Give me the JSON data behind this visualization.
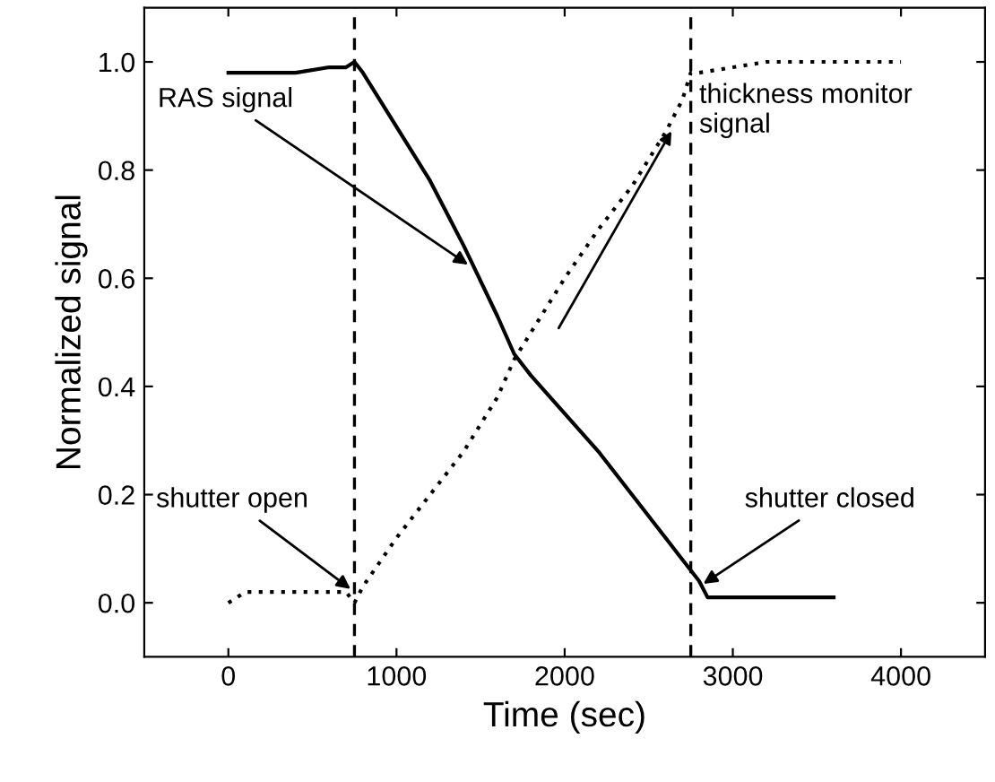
{
  "chart_data": {
    "type": "line",
    "xlabel": "Time (sec)",
    "ylabel": "Normalized signal",
    "xlim": [
      -500,
      4500
    ],
    "ylim": [
      -0.1,
      1.1
    ],
    "xticks": [
      0,
      1000,
      2000,
      3000,
      4000
    ],
    "yticks": [
      {
        "value": 0,
        "label": "0.0"
      },
      {
        "value": 0.2,
        "label": "0.2"
      },
      {
        "value": 0.4,
        "label": "0.4"
      },
      {
        "value": 0.6,
        "label": "0.6"
      },
      {
        "value": 0.8,
        "label": "0.8"
      },
      {
        "value": 1,
        "label": "1.0"
      }
    ],
    "grid": false,
    "series": [
      {
        "color": "#000000",
        "line_style": "solid",
        "x": [
          0,
          200,
          400,
          600,
          700,
          750,
          800,
          1000,
          1200,
          1400,
          1600,
          1700,
          1800,
          2000,
          2200,
          2400,
          2600,
          2700,
          2750,
          2800,
          2850,
          2900,
          3200,
          3600
        ],
        "values": [
          0.98,
          0.98,
          0.98,
          0.99,
          0.99,
          1.0,
          0.98,
          0.88,
          0.78,
          0.66,
          0.53,
          0.46,
          0.42,
          0.35,
          0.28,
          0.2,
          0.12,
          0.08,
          0.06,
          0.04,
          0.01,
          0.01,
          0.01,
          0.01
        ]
      },
      {
        "color": "#000000",
        "line_style": "dotted",
        "x": [
          0,
          100,
          300,
          500,
          700,
          750,
          800,
          1000,
          1200,
          1400,
          1600,
          1700,
          1800,
          2000,
          2200,
          2400,
          2600,
          2700,
          2750,
          2800,
          3000,
          3200,
          3600,
          4000
        ],
        "values": [
          0.0,
          0.02,
          0.02,
          0.02,
          0.02,
          0.0,
          0.03,
          0.12,
          0.2,
          0.28,
          0.38,
          0.45,
          0.5,
          0.6,
          0.69,
          0.77,
          0.87,
          0.93,
          0.98,
          0.98,
          0.99,
          1.0,
          1.0,
          1.0
        ]
      }
    ],
    "ref_lines": [
      {
        "axis": "x",
        "value": 750,
        "line_style": "dashed",
        "color": "#000000"
      },
      {
        "axis": "x",
        "value": 2750,
        "line_style": "dashed",
        "color": "#000000"
      }
    ],
    "annotations": [
      {
        "text": "RAS signal",
        "x": 1450,
        "y": 0.62
      },
      {
        "text": "thickness monitor\nsignal",
        "x": 2650,
        "y": 0.88
      },
      {
        "text": "shutter open",
        "x": 750,
        "y": 0.02
      },
      {
        "text": "shutter closed",
        "x": 2800,
        "y": 0.03
      }
    ]
  }
}
